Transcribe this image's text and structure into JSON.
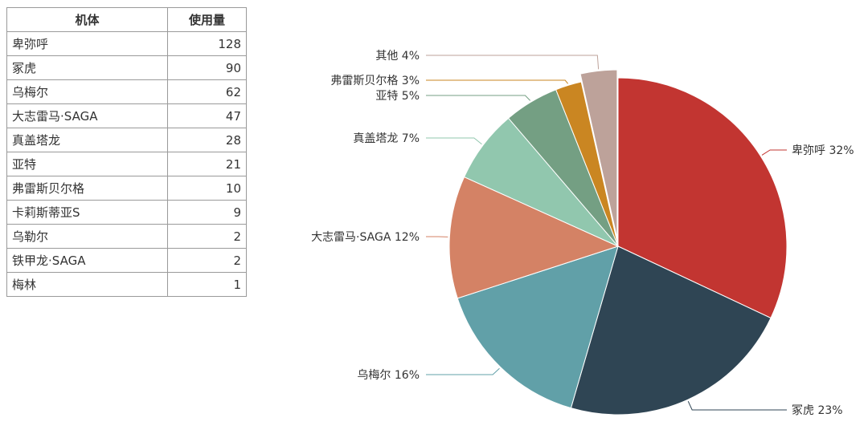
{
  "table": {
    "headers": [
      "机体",
      "使用量"
    ],
    "rows": [
      {
        "name": "卑弥呼",
        "count": "128"
      },
      {
        "name": "冢虎",
        "count": "90"
      },
      {
        "name": "乌梅尔",
        "count": "62"
      },
      {
        "name": "大志雷马·SAGA",
        "count": "47"
      },
      {
        "name": "真盖塔龙",
        "count": "28"
      },
      {
        "name": "亚特",
        "count": "21"
      },
      {
        "name": "弗雷斯贝尔格",
        "count": "10"
      },
      {
        "name": "卡莉斯蒂亚S",
        "count": "9"
      },
      {
        "name": "乌勒尔",
        "count": "2"
      },
      {
        "name": "铁甲龙·SAGA",
        "count": "2"
      },
      {
        "name": "梅林",
        "count": "1"
      }
    ]
  },
  "chart_data": {
    "type": "pie",
    "title": "",
    "slices": [
      {
        "label": "卑弥呼",
        "value": 128,
        "percent": "32%",
        "color": "#c23531"
      },
      {
        "label": "冢虎",
        "value": 90,
        "percent": "23%",
        "color": "#2f4554"
      },
      {
        "label": "乌梅尔",
        "value": 62,
        "percent": "16%",
        "color": "#61a0a8"
      },
      {
        "label": "大志雷马·SAGA",
        "value": 47,
        "percent": "12%",
        "color": "#d48265"
      },
      {
        "label": "真盖塔龙",
        "value": 28,
        "percent": "7%",
        "color": "#91c7ae"
      },
      {
        "label": "亚特",
        "value": 21,
        "percent": "5%",
        "color": "#749f83"
      },
      {
        "label": "弗雷斯贝尔格",
        "value": 10,
        "percent": "3%",
        "color": "#ca8622"
      },
      {
        "label": "其他",
        "value": 14,
        "percent": "4%",
        "color": "#bda29a"
      }
    ]
  }
}
